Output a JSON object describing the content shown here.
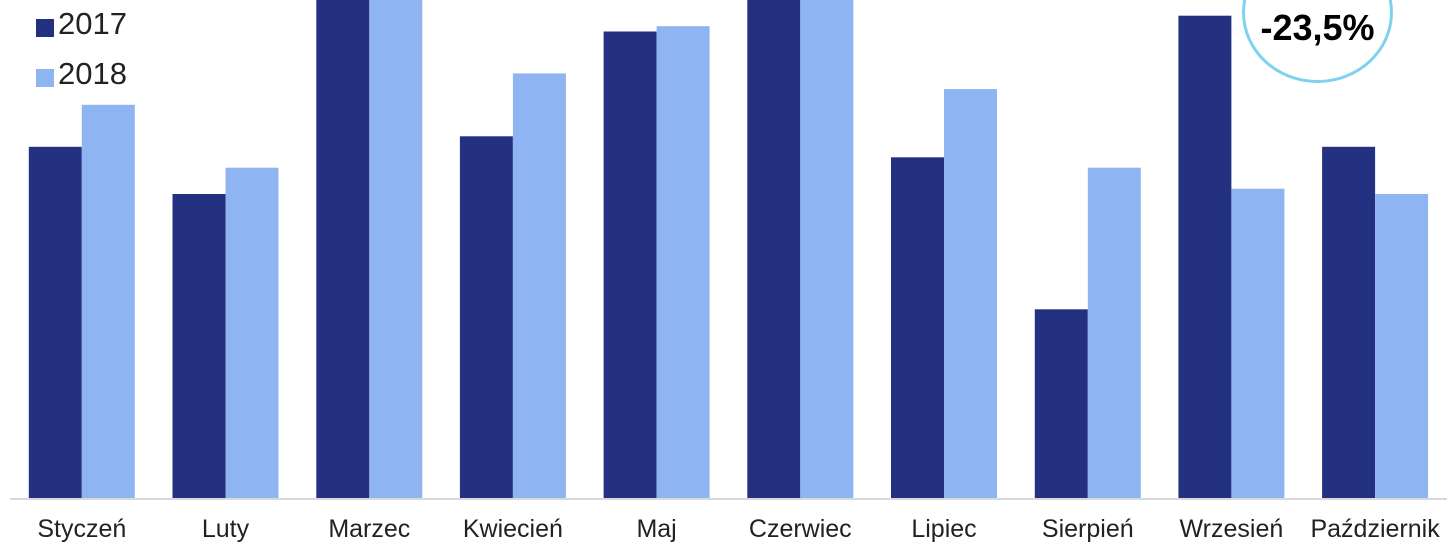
{
  "chart_data": {
    "type": "bar",
    "categories": [
      "Styczeń",
      "Luty",
      "Marzec",
      "Kwiecień",
      "Maj",
      "Czerwiec",
      "Lipiec",
      "Sierpień",
      "Wrzesień",
      "Październik"
    ],
    "series": [
      {
        "name": "2017",
        "color": "#243180",
        "values": [
          67,
          58,
          95,
          69,
          89,
          95,
          65,
          36,
          92,
          67
        ]
      },
      {
        "name": "2018",
        "color": "#8fb4f2",
        "values": [
          75,
          63,
          95,
          81,
          90,
          95,
          78,
          63,
          59,
          58
        ]
      }
    ],
    "ylim": [
      0,
      95
    ],
    "legend_position": "top-left",
    "grid": false,
    "annotation": "-23,5%",
    "annotation_border_color": "#7dd3ee"
  }
}
